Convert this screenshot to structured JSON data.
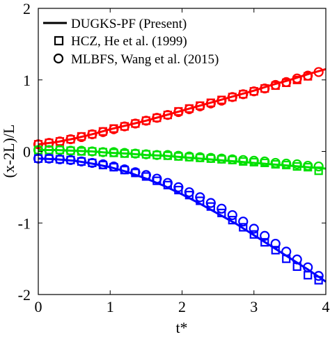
{
  "chart_data": {
    "type": "line",
    "xlabel": "t*",
    "ylabel": "(x-2L)/L",
    "xlim": [
      0,
      4
    ],
    "ylim": [
      -2,
      2
    ],
    "xticks": [
      "0",
      "1",
      "2",
      "3",
      "4"
    ],
    "yticks": [
      "-2",
      "-1",
      "0",
      "1",
      "2"
    ],
    "grid": false,
    "legend_position": "top-left",
    "legend": [
      {
        "label": "DUGKS-PF (Present)",
        "marker": "line"
      },
      {
        "label": "HCZ, He et al. (1999)",
        "marker": "square"
      },
      {
        "label": "MLBFS, Wang et al. (2015)",
        "marker": "circle"
      }
    ],
    "colors": {
      "red": "#ff0000",
      "green": "#00e000",
      "blue": "#0000ff"
    },
    "series": [
      {
        "color": "#ff0000",
        "style": "line",
        "x": [
          0,
          0.25,
          0.5,
          0.75,
          1,
          1.25,
          1.5,
          1.75,
          2,
          2.25,
          2.5,
          2.75,
          3,
          3.25,
          3.5,
          3.75,
          4
        ],
        "y": [
          0.1,
          0.13,
          0.18,
          0.24,
          0.31,
          0.37,
          0.43,
          0.5,
          0.57,
          0.64,
          0.71,
          0.78,
          0.85,
          0.93,
          1.0,
          1.08,
          1.15
        ]
      },
      {
        "color": "#ff0000",
        "style": "square",
        "x": [
          0,
          0.15,
          0.3,
          0.45,
          0.6,
          0.75,
          0.9,
          1.05,
          1.2,
          1.35,
          1.5,
          1.65,
          1.8,
          1.95,
          2.1,
          2.25,
          2.4,
          2.55,
          2.7,
          2.85,
          3.0,
          3.15,
          3.3,
          3.45,
          3.6,
          3.75
        ],
        "y": [
          0.1,
          0.12,
          0.14,
          0.17,
          0.21,
          0.24,
          0.28,
          0.32,
          0.35,
          0.39,
          0.43,
          0.47,
          0.51,
          0.56,
          0.6,
          0.64,
          0.68,
          0.72,
          0.76,
          0.8,
          0.84,
          0.88,
          0.92,
          0.96,
          1.0,
          1.05
        ]
      },
      {
        "color": "#ff0000",
        "style": "circle",
        "x": [
          0,
          0.15,
          0.3,
          0.45,
          0.6,
          0.75,
          0.9,
          1.05,
          1.2,
          1.35,
          1.5,
          1.65,
          1.8,
          1.95,
          2.1,
          2.25,
          2.4,
          2.55,
          2.7,
          2.85,
          3.0,
          3.15,
          3.3,
          3.45,
          3.6,
          3.75,
          3.9
        ],
        "y": [
          0.1,
          0.12,
          0.14,
          0.17,
          0.2,
          0.24,
          0.27,
          0.31,
          0.35,
          0.39,
          0.43,
          0.47,
          0.51,
          0.55,
          0.59,
          0.63,
          0.67,
          0.71,
          0.76,
          0.8,
          0.84,
          0.88,
          0.93,
          0.97,
          1.02,
          1.06,
          1.11
        ]
      },
      {
        "color": "#00e000",
        "style": "line",
        "x": [
          0,
          0.25,
          0.5,
          0.75,
          1,
          1.25,
          1.5,
          1.75,
          2,
          2.25,
          2.5,
          2.75,
          3,
          3.25,
          3.5,
          3.75,
          4
        ],
        "y": [
          0.02,
          0.02,
          0.01,
          0.0,
          -0.02,
          -0.03,
          -0.05,
          -0.06,
          -0.08,
          -0.1,
          -0.12,
          -0.14,
          -0.16,
          -0.18,
          -0.2,
          -0.22,
          -0.24
        ]
      },
      {
        "color": "#00e000",
        "style": "square",
        "x": [
          0,
          0.15,
          0.3,
          0.45,
          0.6,
          0.75,
          0.9,
          1.05,
          1.2,
          1.35,
          1.5,
          1.65,
          1.8,
          1.95,
          2.1,
          2.25,
          2.4,
          2.55,
          2.7,
          2.85,
          3.0,
          3.15,
          3.3,
          3.45,
          3.6,
          3.75,
          3.9
        ],
        "y": [
          0.02,
          0.02,
          0.02,
          0.01,
          0.0,
          0.0,
          -0.01,
          -0.02,
          -0.03,
          -0.03,
          -0.04,
          -0.05,
          -0.06,
          -0.07,
          -0.08,
          -0.09,
          -0.1,
          -0.11,
          -0.12,
          -0.14,
          -0.15,
          -0.16,
          -0.18,
          -0.19,
          -0.21,
          -0.22,
          -0.27
        ]
      },
      {
        "color": "#00e000",
        "style": "circle",
        "x": [
          0,
          0.15,
          0.3,
          0.45,
          0.6,
          0.75,
          0.9,
          1.05,
          1.2,
          1.35,
          1.5,
          1.65,
          1.8,
          1.95,
          2.1,
          2.25,
          2.4,
          2.55,
          2.7,
          2.85,
          3.0,
          3.15,
          3.3,
          3.45,
          3.6,
          3.75,
          3.9
        ],
        "y": [
          0.02,
          0.02,
          0.02,
          0.01,
          0.01,
          0.0,
          -0.01,
          -0.01,
          -0.02,
          -0.03,
          -0.04,
          -0.05,
          -0.05,
          -0.06,
          -0.07,
          -0.08,
          -0.09,
          -0.1,
          -0.11,
          -0.12,
          -0.13,
          -0.14,
          -0.16,
          -0.17,
          -0.18,
          -0.2,
          -0.21
        ]
      },
      {
        "color": "#0000ff",
        "style": "line",
        "x": [
          0,
          0.25,
          0.5,
          0.75,
          1,
          1.25,
          1.5,
          1.75,
          2,
          2.25,
          2.5,
          2.75,
          3,
          3.25,
          3.5,
          3.75,
          4
        ],
        "y": [
          -0.1,
          -0.11,
          -0.13,
          -0.17,
          -0.22,
          -0.29,
          -0.38,
          -0.48,
          -0.6,
          -0.73,
          -0.87,
          -1.01,
          -1.17,
          -1.33,
          -1.49,
          -1.65,
          -1.82
        ]
      },
      {
        "color": "#0000ff",
        "style": "square",
        "x": [
          0,
          0.15,
          0.3,
          0.45,
          0.6,
          0.75,
          0.9,
          1.05,
          1.2,
          1.35,
          1.5,
          1.65,
          1.8,
          1.95,
          2.1,
          2.25,
          2.4,
          2.55,
          2.7,
          2.85,
          3.0,
          3.15,
          3.3,
          3.45,
          3.6,
          3.75,
          3.9
        ],
        "y": [
          -0.1,
          -0.1,
          -0.11,
          -0.12,
          -0.14,
          -0.16,
          -0.19,
          -0.22,
          -0.26,
          -0.3,
          -0.35,
          -0.41,
          -0.47,
          -0.54,
          -0.61,
          -0.69,
          -0.77,
          -0.86,
          -0.96,
          -1.06,
          -1.16,
          -1.27,
          -1.38,
          -1.5,
          -1.61,
          -1.73,
          -1.8
        ]
      },
      {
        "color": "#0000ff",
        "style": "circle",
        "x": [
          0,
          0.15,
          0.3,
          0.45,
          0.6,
          0.75,
          0.9,
          1.05,
          1.2,
          1.35,
          1.5,
          1.65,
          1.8,
          1.95,
          2.1,
          2.25,
          2.4,
          2.55,
          2.7,
          2.85,
          3.0,
          3.15,
          3.3,
          3.45,
          3.6,
          3.75,
          3.9
        ],
        "y": [
          -0.1,
          -0.1,
          -0.11,
          -0.12,
          -0.14,
          -0.16,
          -0.18,
          -0.21,
          -0.25,
          -0.29,
          -0.33,
          -0.38,
          -0.44,
          -0.5,
          -0.57,
          -0.64,
          -0.72,
          -0.8,
          -0.89,
          -0.98,
          -1.08,
          -1.18,
          -1.29,
          -1.4,
          -1.51,
          -1.62,
          -1.74
        ]
      }
    ]
  }
}
